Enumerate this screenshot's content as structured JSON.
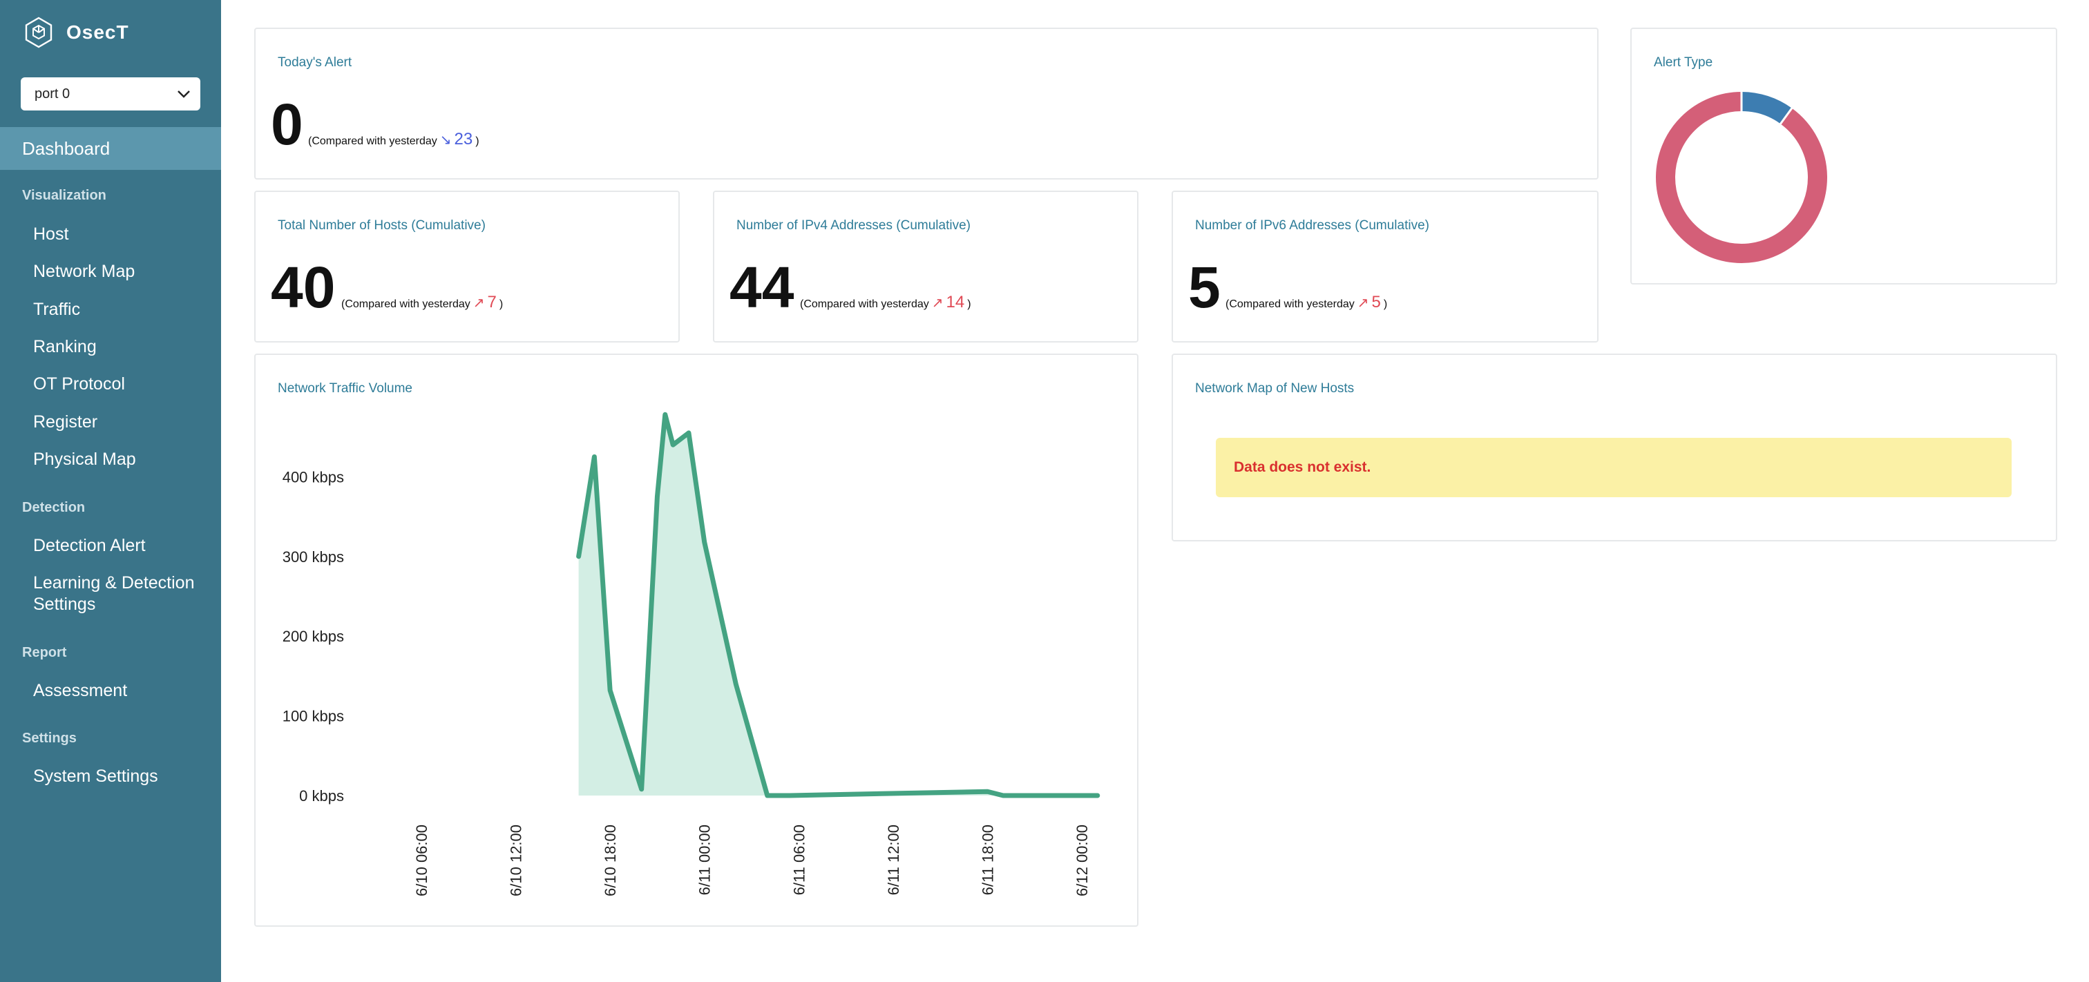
{
  "app": {
    "name": "OsecT"
  },
  "port_select": {
    "value": "port 0"
  },
  "nav": {
    "active": "Dashboard",
    "visualization_label": "Visualization",
    "visualization": [
      "Host",
      "Network Map",
      "Traffic",
      "Ranking",
      "OT Protocol",
      "Register",
      "Physical Map"
    ],
    "detection_label": "Detection",
    "detection": [
      "Detection Alert",
      "Learning & Detection",
      "Settings"
    ],
    "report_label": "Report",
    "report": [
      "Assessment"
    ],
    "settings_label": "Settings",
    "settings": [
      "System Settings"
    ]
  },
  "todays_alert": {
    "title": "Today's Alert",
    "value": "0",
    "compare_prefix": "(Compared with yesterday",
    "arrow": "↘",
    "delta": "23",
    "compare_suffix": ")"
  },
  "hosts": {
    "title": "Total Number of Hosts (Cumulative)",
    "value": "40",
    "compare_prefix": "(Compared with yesterday",
    "arrow": "↗",
    "delta": "7",
    "compare_suffix": ")"
  },
  "ipv4": {
    "title": "Number of IPv4 Addresses (Cumulative)",
    "value": "44",
    "compare_prefix": "(Compared with yesterday",
    "arrow": "↗",
    "delta": "14",
    "compare_suffix": ")"
  },
  "ipv6": {
    "title": "Number of IPv6 Addresses (Cumulative)",
    "value": "5",
    "compare_prefix": "(Compared with yesterday",
    "arrow": "↗",
    "delta": "5",
    "compare_suffix": ")"
  },
  "alert_type": {
    "title": "Alert Type",
    "colors": [
      "#d45f78",
      "#3d7db1"
    ]
  },
  "traffic": {
    "title": "Network Traffic Volume"
  },
  "network_map": {
    "title": "Network Map of New Hosts",
    "message": "Data does not exist."
  },
  "colors": {
    "sidebar": "#3a7489",
    "accent": "#2e7c98",
    "line": "#44a382",
    "fill": "#d3eee4",
    "up": "#e04a55",
    "down": "#4a5fdc"
  },
  "chart_data": [
    {
      "type": "pie",
      "title": "Alert Type",
      "values": [
        90,
        10
      ],
      "colors": [
        "#d45f78",
        "#3d7db1"
      ]
    },
    {
      "type": "area",
      "title": "Network Traffic Volume",
      "y_unit": "kbps",
      "yticks": [
        "0 kbps",
        "100 kbps",
        "200 kbps",
        "300 kbps",
        "400 kbps"
      ],
      "ylim": [
        0,
        480
      ],
      "xticks": [
        "6/10 06:00",
        "6/10 12:00",
        "6/10 18:00",
        "6/11 00:00",
        "6/11 06:00",
        "6/11 12:00",
        "6/11 18:00",
        "6/12 00:00"
      ],
      "xlim": [
        "6/10 06:00",
        "6/12 00:00"
      ],
      "x": [
        "6/10 16:00",
        "6/10 17:00",
        "6/10 18:00",
        "6/10 20:00",
        "6/10 21:00",
        "6/10 21:30",
        "6/10 22:00",
        "6/10 23:00",
        "6/11 00:00",
        "6/11 02:00",
        "6/11 04:00",
        "6/11 05:20",
        "6/11 18:00",
        "6/11 19:00",
        "6/12 01:00"
      ],
      "values": [
        300,
        425,
        132,
        8,
        375,
        478,
        440,
        455,
        318,
        140,
        0,
        0,
        5,
        0,
        0
      ]
    }
  ]
}
